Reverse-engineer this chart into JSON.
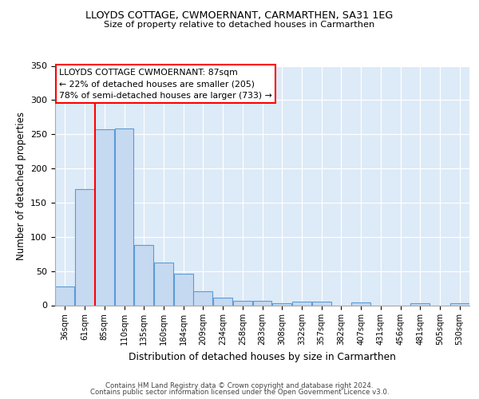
{
  "title1": "LLOYDS COTTAGE, CWMOERNANT, CARMARTHEN, SA31 1EG",
  "title2": "Size of property relative to detached houses in Carmarthen",
  "xlabel": "Distribution of detached houses by size in Carmarthen",
  "ylabel": "Number of detached properties",
  "categories": [
    "36sqm",
    "61sqm",
    "85sqm",
    "110sqm",
    "135sqm",
    "160sqm",
    "184sqm",
    "209sqm",
    "234sqm",
    "258sqm",
    "283sqm",
    "308sqm",
    "332sqm",
    "357sqm",
    "382sqm",
    "407sqm",
    "431sqm",
    "456sqm",
    "481sqm",
    "505sqm",
    "530sqm"
  ],
  "values": [
    28,
    170,
    257,
    258,
    88,
    63,
    46,
    20,
    11,
    7,
    7,
    3,
    5,
    5,
    0,
    4,
    0,
    0,
    3,
    0,
    3
  ],
  "bar_color": "#c5d9f1",
  "bar_edge_color": "#5b9bd5",
  "vline_index": 2,
  "vline_color": "red",
  "annotation_title": "LLOYDS COTTAGE CWMOERNANT: 87sqm",
  "annotation_line1": "← 22% of detached houses are smaller (205)",
  "annotation_line2": "78% of semi-detached houses are larger (733) →",
  "ylim": [
    0,
    350
  ],
  "yticks": [
    0,
    50,
    100,
    150,
    200,
    250,
    300,
    350
  ],
  "footer1": "Contains HM Land Registry data © Crown copyright and database right 2024.",
  "footer2": "Contains public sector information licensed under the Open Government Licence v3.0.",
  "plot_bg_color": "#ddeaf7"
}
